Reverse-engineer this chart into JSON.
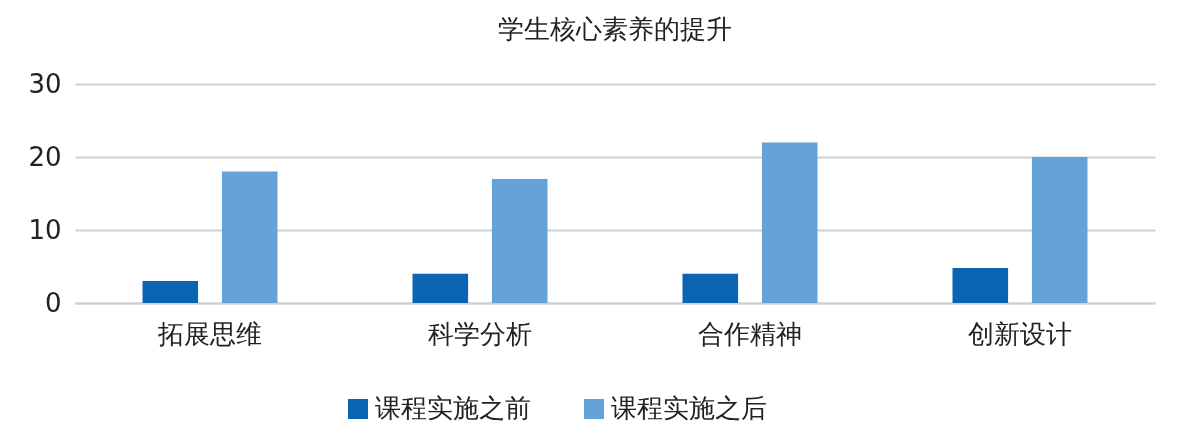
{
  "chart_data": {
    "type": "bar",
    "title": "学生核心素养的提升",
    "categories": [
      "拓展思维",
      "科学分析",
      "合作精神",
      "创新设计"
    ],
    "series": [
      {
        "name": "课程实施之前",
        "color": "#0a64b4",
        "values": [
          3,
          4,
          4,
          4.8
        ]
      },
      {
        "name": "课程实施之后",
        "color": "#64a2d8",
        "values": [
          18,
          17,
          22,
          20
        ]
      }
    ],
    "ylim": [
      0,
      30
    ],
    "yticks": [
      0,
      10,
      20,
      30
    ],
    "grid": "y",
    "legend": "bottom"
  }
}
